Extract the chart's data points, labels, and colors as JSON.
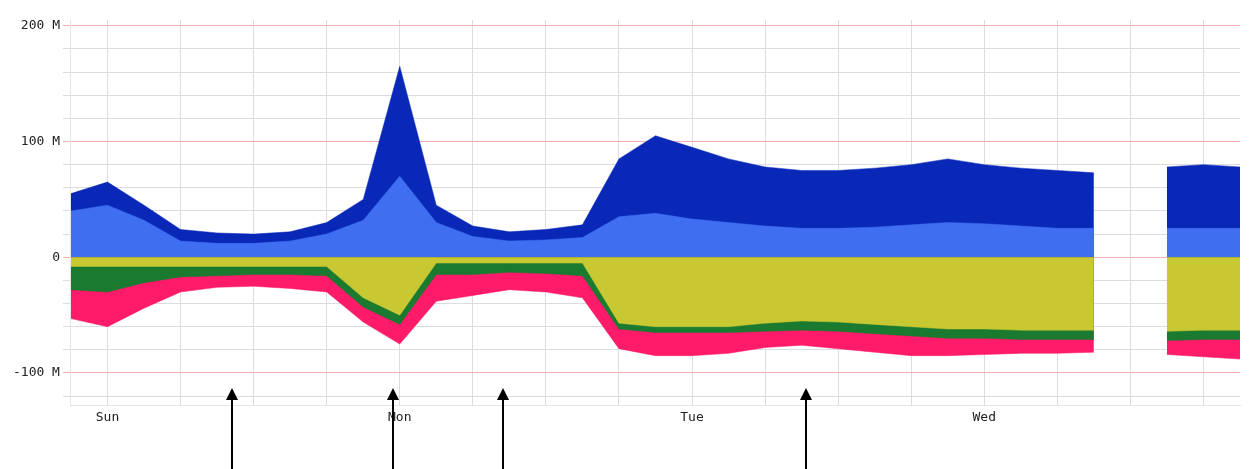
{
  "chart_data": {
    "type": "area",
    "categories": [
      null,
      "Sun",
      null,
      null,
      null,
      null,
      null,
      null,
      null,
      "Mon",
      null,
      null,
      null,
      null,
      null,
      null,
      null,
      "Tue",
      null,
      null,
      null,
      null,
      null,
      null,
      null,
      "Wed",
      null,
      null,
      null,
      null,
      null,
      null,
      null
    ],
    "series": [
      {
        "color": "#0a28b8",
        "values": [
          55,
          65,
          45,
          24,
          21,
          20,
          22,
          30,
          50,
          165,
          45,
          27,
          22,
          24,
          28,
          85,
          105,
          95,
          85,
          78,
          75,
          75,
          77,
          80,
          85,
          80,
          77,
          75,
          73,
          null,
          78,
          80,
          78
        ]
      },
      {
        "color": "#3f6ff0",
        "values": [
          40,
          45,
          32,
          14,
          12,
          12,
          14,
          20,
          32,
          70,
          30,
          18,
          14,
          15,
          17,
          35,
          38,
          33,
          30,
          27,
          25,
          25,
          26,
          28,
          30,
          29,
          27,
          25,
          25,
          null,
          25,
          25,
          25
        ]
      },
      {
        "color": "#ff1a6a",
        "values": [
          -53,
          -60,
          -44,
          -30,
          -26,
          -25,
          -27,
          -30,
          -56,
          -75,
          -38,
          -33,
          -28,
          -30,
          -35,
          -79,
          -85,
          -85,
          -83,
          -78,
          -76,
          -79,
          -82,
          -85,
          -85,
          -84,
          -83,
          -83,
          -82,
          null,
          -84,
          -86,
          -88
        ]
      },
      {
        "color": "#1a7a30",
        "values": [
          -28,
          -30,
          -22,
          -17,
          -16,
          -15,
          -15,
          -16,
          -43,
          -58,
          -15,
          -15,
          -13,
          -14,
          -16,
          -62,
          -65,
          -65,
          -65,
          -64,
          -63,
          -64,
          -66,
          -68,
          -70,
          -70,
          -71,
          -71,
          -71,
          null,
          -72,
          -71,
          -71
        ]
      },
      {
        "color": "#c8c832",
        "values": [
          -8,
          -8,
          -8,
          -8,
          -8,
          -8,
          -8,
          -8,
          -35,
          -50,
          -5,
          -5,
          -5,
          -5,
          -5,
          -57,
          -60,
          -60,
          -60,
          -57,
          -55,
          -56,
          -58,
          -60,
          -62,
          -62,
          -63,
          -63,
          -63,
          null,
          -64,
          -63,
          -63
        ]
      }
    ],
    "ylim": [
      -128,
      205
    ],
    "yticks": [
      {
        "value": -120,
        "label": null
      },
      {
        "value": -100,
        "label": "-100 M"
      },
      {
        "value": -80,
        "label": null
      },
      {
        "value": -60,
        "label": null
      },
      {
        "value": -40,
        "label": null
      },
      {
        "value": -20,
        "label": null
      },
      0,
      {
        "value": 20,
        "label": null
      },
      {
        "value": 40,
        "label": null
      },
      {
        "value": 60,
        "label": null
      },
      {
        "value": 80,
        "label": null
      },
      {
        "value": 100,
        "label": "100 M"
      },
      {
        "value": 120,
        "label": null
      },
      {
        "value": 140,
        "label": null
      },
      {
        "value": 160,
        "label": null
      },
      {
        "value": 180,
        "label": null
      },
      {
        "value": 200,
        "label": "200 M"
      }
    ],
    "grid": true
  }
}
